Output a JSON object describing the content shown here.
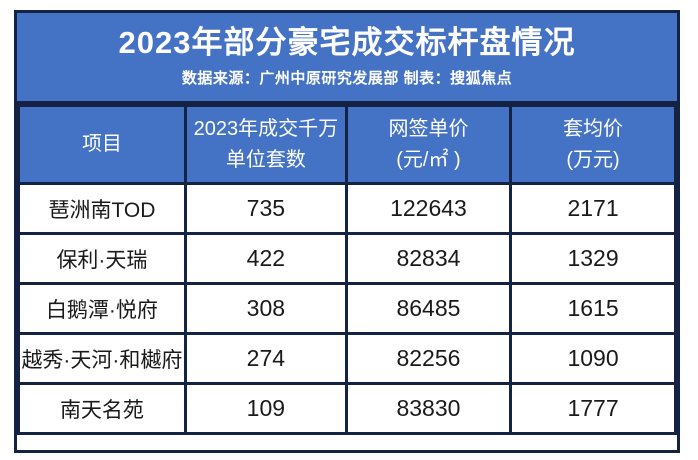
{
  "banner": {
    "title": "2023年部分豪宅成交标杆盘情况",
    "subtitle": "数据来源：广州中原研究发展部 制表：搜狐焦点"
  },
  "colors": {
    "banner_blue": "#4472C4",
    "grid_border_dark": "#142243",
    "cell_background": "#FFFFFF",
    "cell_text": "#1A1A1A",
    "banner_text": "#FFFFFF"
  },
  "chart_data": {
    "type": "table",
    "title": "2023年部分豪宅成交标杆盘情况",
    "source_note": "数据来源：广州中原研究发展部 制表：搜狐焦点",
    "columns": [
      "项目",
      "2023年成交千万\n单位套数",
      "网签单价\n(元/㎡ )",
      "套均价\n(万元)"
    ],
    "rows": [
      [
        "琶洲南TOD",
        "735",
        "122643",
        "2171"
      ],
      [
        "保利·天瑞",
        "422",
        "82834",
        "1329"
      ],
      [
        "白鹅潭·悦府",
        "308",
        "86485",
        "1615"
      ],
      [
        "越秀·天河·和樾府",
        "274",
        "82256",
        "1090"
      ],
      [
        "南天名苑",
        "109",
        "83830",
        "1777"
      ]
    ]
  }
}
